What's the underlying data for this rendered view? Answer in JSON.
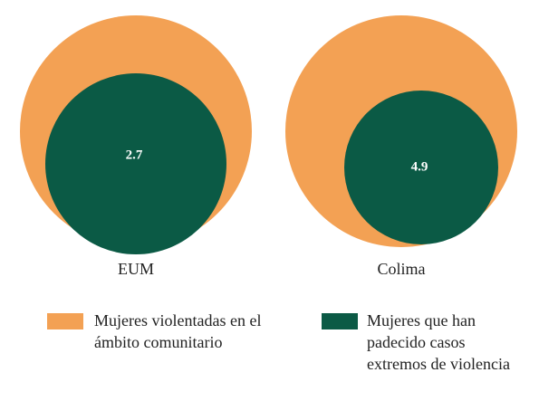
{
  "chart_data": {
    "type": "nested-circles",
    "categories": [
      "EUM",
      "Colima"
    ],
    "series": [
      {
        "name": "Mujeres violentadas en el ámbito comunitario",
        "color": "#f3a154"
      },
      {
        "name": "Mujeres que han padecido casos extremos de violencia",
        "color": "#0b5a45",
        "values": [
          2.7,
          4.9
        ]
      }
    ]
  }
}
